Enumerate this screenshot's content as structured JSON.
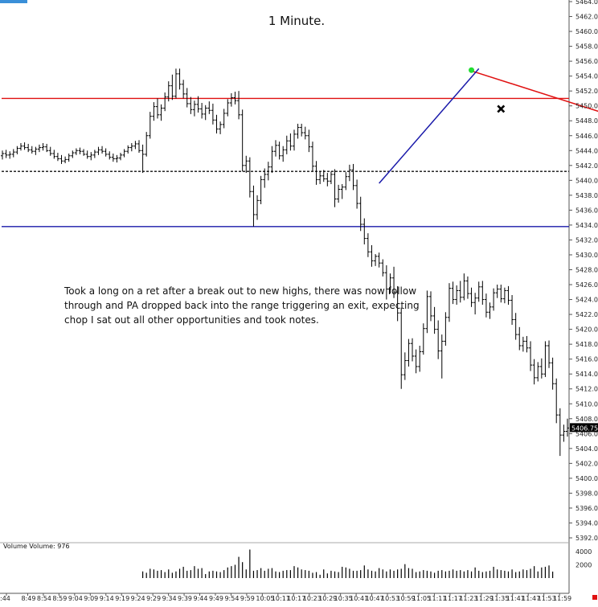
{
  "chart_data": {
    "type": "ohlc",
    "title": "1 Minute.",
    "annotation": [
      "Took a long on a ret after a break out to new highs, there was now follow",
      "through and PA dropped back into the range triggering an exit, expecting",
      "chop I sat out all other opportunities and took notes."
    ],
    "y_axis": {
      "ylim": [
        5389,
        5465
      ],
      "ticks": [
        "5464.00",
        "5462.00",
        "5460.00",
        "5458.00",
        "5456.00",
        "5454.00",
        "5452.00",
        "5450.00",
        "5448.00",
        "5446.00",
        "5444.00",
        "5442.00",
        "5440.00",
        "5438.00",
        "5436.00",
        "5434.00",
        "5432.00",
        "5430.00",
        "5428.00",
        "5426.00",
        "5424.00",
        "5422.00",
        "5420.00",
        "5418.00",
        "5416.00",
        "5414.00",
        "5412.00",
        "5410.00",
        "5408.00",
        "5406.00",
        "5404.00",
        "5402.00",
        "5400.00",
        "5398.00",
        "5396.00",
        "5394.00",
        "5392.00"
      ],
      "last_price_label": "5406.75",
      "last_price": 5406.75
    },
    "x_axis": {
      "ticks": [
        ":44",
        "8:49",
        "8:54",
        "8:59",
        "9:04",
        "9:09",
        "9:14",
        "9:19",
        "9:24",
        "9:29",
        "9:34",
        "9:39",
        "9:44",
        "9:49",
        "9:54",
        "9:59",
        "10:05",
        "10:11",
        "10:17",
        "10:23",
        "10:29",
        "10:35",
        "10:41",
        "10:47",
        "10:53",
        "10:59",
        "11:05",
        "11:11",
        "11:17",
        "11:23",
        "11:29",
        "11:35",
        "11:41",
        "11:47",
        "11:53",
        "11:59"
      ]
    },
    "levels": [
      {
        "name": "range-high",
        "price": 5451.0,
        "color": "#e01010",
        "style": "solid"
      },
      {
        "name": "range-mid",
        "price": 5441.2,
        "color": "#111111",
        "style": "dashed"
      },
      {
        "name": "range-low",
        "price": 5433.8,
        "color": "#1a1aaa",
        "style": "solid"
      }
    ],
    "trendlines": [
      {
        "name": "red-trendline",
        "from": [
          127,
          5454.7
        ],
        "to": [
          189,
          5444.9
        ],
        "color": "#e01010"
      },
      {
        "name": "blue-trendline",
        "from": [
          102,
          5439.6
        ],
        "to": [
          129,
          5455.0
        ],
        "color": "#1a1aaa"
      }
    ],
    "markers": [
      {
        "name": "green-dot-marker",
        "bar": 127,
        "price": 5454.8,
        "color": "#22dd33",
        "shape": "dot"
      },
      {
        "name": "exit-x-marker",
        "bar": 135,
        "price": 5449.6,
        "color": "#000000",
        "shape": "x"
      }
    ],
    "volume": {
      "label": "Volume  Volume: 976",
      "ticks": [
        "4000",
        "2000"
      ],
      "ylim": [
        0,
        4400
      ],
      "last_marker_color": "#e01010"
    },
    "bars": [
      [
        5443.3,
        5444.0,
        5442.8,
        5443.6
      ],
      [
        5443.6,
        5444.1,
        5443.0,
        5443.4
      ],
      [
        5443.4,
        5443.9,
        5442.9,
        5443.5
      ],
      [
        5443.5,
        5444.2,
        5443.1,
        5443.8
      ],
      [
        5443.8,
        5444.6,
        5443.5,
        5444.3
      ],
      [
        5444.3,
        5445.0,
        5444.0,
        5444.6
      ],
      [
        5444.6,
        5445.1,
        5444.1,
        5444.4
      ],
      [
        5444.4,
        5444.9,
        5443.8,
        5444.1
      ],
      [
        5444.1,
        5444.6,
        5443.6,
        5443.9
      ],
      [
        5443.9,
        5444.5,
        5443.4,
        5444.2
      ],
      [
        5444.2,
        5444.8,
        5443.8,
        5444.4
      ],
      [
        5444.4,
        5445.0,
        5444.0,
        5444.5
      ],
      [
        5444.5,
        5444.9,
        5443.8,
        5444.0
      ],
      [
        5444.0,
        5444.5,
        5443.3,
        5443.6
      ],
      [
        5443.6,
        5444.1,
        5442.9,
        5443.2
      ],
      [
        5443.2,
        5443.7,
        5442.6,
        5442.9
      ],
      [
        5442.9,
        5443.4,
        5442.2,
        5442.6
      ],
      [
        5442.6,
        5443.2,
        5442.3,
        5442.8
      ],
      [
        5442.8,
        5443.6,
        5442.5,
        5443.3
      ],
      [
        5443.3,
        5444.0,
        5443.0,
        5443.7
      ],
      [
        5443.7,
        5444.3,
        5443.4,
        5444.0
      ],
      [
        5444.0,
        5444.4,
        5443.5,
        5443.9
      ],
      [
        5443.9,
        5444.2,
        5443.3,
        5443.5
      ],
      [
        5443.5,
        5444.0,
        5442.9,
        5443.2
      ],
      [
        5443.2,
        5443.8,
        5442.7,
        5443.4
      ],
      [
        5443.4,
        5444.1,
        5443.0,
        5443.8
      ],
      [
        5443.8,
        5444.5,
        5443.4,
        5444.1
      ],
      [
        5444.1,
        5444.6,
        5443.6,
        5443.9
      ],
      [
        5443.9,
        5444.3,
        5443.2,
        5443.5
      ],
      [
        5443.5,
        5443.9,
        5442.8,
        5443.1
      ],
      [
        5443.1,
        5443.6,
        5442.5,
        5442.9
      ],
      [
        5442.9,
        5443.4,
        5442.4,
        5443.0
      ],
      [
        5443.0,
        5443.7,
        5442.7,
        5443.4
      ],
      [
        5443.4,
        5444.2,
        5443.1,
        5443.9
      ],
      [
        5443.9,
        5444.7,
        5443.6,
        5444.4
      ],
      [
        5444.4,
        5445.0,
        5443.9,
        5444.6
      ],
      [
        5444.6,
        5445.3,
        5444.2,
        5444.9
      ],
      [
        5444.9,
        5445.4,
        5443.7,
        5444.0
      ],
      [
        5444.0,
        5444.8,
        5441.0,
        5443.5
      ],
      [
        5443.5,
        5446.5,
        5443.2,
        5446.0
      ],
      [
        5446.0,
        5449.2,
        5445.6,
        5448.6
      ],
      [
        5448.6,
        5450.5,
        5448.0,
        5449.9
      ],
      [
        5449.9,
        5451.0,
        5448.3,
        5448.8
      ],
      [
        5448.8,
        5450.2,
        5448.0,
        5449.7
      ],
      [
        5449.7,
        5451.8,
        5449.3,
        5451.2
      ],
      [
        5451.2,
        5453.3,
        5450.6,
        5452.7
      ],
      [
        5452.7,
        5454.2,
        5450.8,
        5451.3
      ],
      [
        5451.3,
        5455.0,
        5451.0,
        5454.3
      ],
      [
        5454.3,
        5455.0,
        5452.2,
        5452.9
      ],
      [
        5452.9,
        5453.5,
        5451.0,
        5451.6
      ],
      [
        5451.6,
        5452.4,
        5449.8,
        5450.3
      ],
      [
        5450.3,
        5451.2,
        5448.9,
        5449.5
      ],
      [
        5449.5,
        5450.7,
        5448.6,
        5450.2
      ],
      [
        5450.2,
        5451.3,
        5449.1,
        5449.6
      ],
      [
        5449.6,
        5450.4,
        5448.3,
        5448.9
      ],
      [
        5448.9,
        5450.1,
        5448.1,
        5449.7
      ],
      [
        5449.7,
        5450.6,
        5448.9,
        5449.4
      ],
      [
        5449.4,
        5450.3,
        5447.5,
        5448.1
      ],
      [
        5448.1,
        5448.8,
        5446.3,
        5446.9
      ],
      [
        5446.9,
        5447.9,
        5446.2,
        5447.5
      ],
      [
        5447.5,
        5449.6,
        5447.0,
        5449.0
      ],
      [
        5449.0,
        5450.9,
        5448.6,
        5450.4
      ],
      [
        5450.4,
        5451.7,
        5449.9,
        5451.1
      ],
      [
        5451.1,
        5451.9,
        5450.2,
        5450.7
      ],
      [
        5450.7,
        5452.0,
        5448.2,
        5448.8
      ],
      [
        5448.8,
        5449.5,
        5441.2,
        5442.0
      ],
      [
        5442.0,
        5443.3,
        5441.0,
        5442.6
      ],
      [
        5442.6,
        5443.1,
        5437.7,
        5438.5
      ],
      [
        5438.5,
        5439.3,
        5433.8,
        5435.4
      ],
      [
        5435.4,
        5438.0,
        5434.7,
        5437.3
      ],
      [
        5437.3,
        5440.6,
        5436.8,
        5440.1
      ],
      [
        5440.1,
        5441.6,
        5439.0,
        5440.8
      ],
      [
        5440.8,
        5442.5,
        5440.0,
        5441.8
      ],
      [
        5441.8,
        5444.6,
        5441.0,
        5443.9
      ],
      [
        5443.9,
        5445.4,
        5443.2,
        5444.7
      ],
      [
        5444.7,
        5445.2,
        5442.8,
        5443.3
      ],
      [
        5443.3,
        5444.6,
        5442.5,
        5444.1
      ],
      [
        5444.1,
        5446.0,
        5443.5,
        5445.3
      ],
      [
        5445.3,
        5446.3,
        5444.0,
        5444.6
      ],
      [
        5444.6,
        5446.8,
        5444.0,
        5446.2
      ],
      [
        5446.2,
        5447.6,
        5445.6,
        5447.1
      ],
      [
        5447.1,
        5447.6,
        5445.9,
        5446.4
      ],
      [
        5446.4,
        5447.2,
        5445.5,
        5446.0
      ],
      [
        5446.0,
        5446.8,
        5443.8,
        5444.5
      ],
      [
        5444.5,
        5445.2,
        5441.2,
        5441.9
      ],
      [
        5441.9,
        5442.6,
        5439.4,
        5440.1
      ],
      [
        5440.1,
        5441.2,
        5439.5,
        5440.6
      ],
      [
        5440.6,
        5441.4,
        5439.8,
        5440.2
      ],
      [
        5440.2,
        5441.0,
        5439.2,
        5439.9
      ],
      [
        5439.9,
        5441.2,
        5439.5,
        5440.8
      ],
      [
        5440.8,
        5441.5,
        5436.4,
        5437.5
      ],
      [
        5437.5,
        5439.4,
        5437.0,
        5438.8
      ],
      [
        5438.8,
        5439.5,
        5437.5,
        5439.1
      ],
      [
        5439.1,
        5441.1,
        5438.7,
        5440.5
      ],
      [
        5440.5,
        5442.1,
        5439.9,
        5441.4
      ],
      [
        5441.4,
        5442.2,
        5438.7,
        5439.3
      ],
      [
        5439.3,
        5440.1,
        5436.2,
        5436.9
      ],
      [
        5436.9,
        5437.8,
        5433.2,
        5434.1
      ],
      [
        5434.1,
        5434.9,
        5431.4,
        5432.2
      ],
      [
        5432.2,
        5432.9,
        5429.7,
        5430.4
      ],
      [
        5430.4,
        5431.3,
        5428.4,
        5429.2
      ],
      [
        5429.2,
        5430.1,
        5428.5,
        5429.8
      ],
      [
        5429.8,
        5430.3,
        5428.3,
        5428.9
      ],
      [
        5428.9,
        5429.4,
        5427.1,
        5427.6
      ],
      [
        5427.6,
        5428.6,
        5424.0,
        5425.4
      ],
      [
        5425.4,
        5427.5,
        5424.8,
        5426.9
      ],
      [
        5426.9,
        5428.4,
        5424.2,
        5425.0
      ],
      [
        5425.0,
        5425.8,
        5421.1,
        5422.2
      ],
      [
        5422.2,
        5422.9,
        5412.0,
        5413.9
      ],
      [
        5413.9,
        5416.9,
        5413.2,
        5415.8
      ],
      [
        5415.8,
        5418.7,
        5415.0,
        5418.1
      ],
      [
        5418.1,
        5418.8,
        5415.7,
        5416.4
      ],
      [
        5416.4,
        5417.3,
        5414.1,
        5415.0
      ],
      [
        5415.0,
        5417.8,
        5414.3,
        5417.0
      ],
      [
        5417.0,
        5420.8,
        5416.6,
        5420.1
      ],
      [
        5420.1,
        5425.2,
        5419.5,
        5424.4
      ],
      [
        5424.4,
        5425.1,
        5421.1,
        5421.8
      ],
      [
        5421.8,
        5423.0,
        5419.4,
        5420.0
      ],
      [
        5420.0,
        5421.2,
        5416.0,
        5417.1
      ],
      [
        5417.1,
        5419.3,
        5413.4,
        5418.4
      ],
      [
        5418.4,
        5422.3,
        5417.8,
        5421.6
      ],
      [
        5421.6,
        5426.2,
        5421.0,
        5425.5
      ],
      [
        5425.5,
        5426.4,
        5423.4,
        5424.0
      ],
      [
        5424.0,
        5425.9,
        5423.3,
        5425.2
      ],
      [
        5425.2,
        5426.5,
        5423.6,
        5424.3
      ],
      [
        5424.3,
        5427.5,
        5423.9,
        5426.5
      ],
      [
        5426.5,
        5427.1,
        5424.1,
        5424.8
      ],
      [
        5424.8,
        5425.6,
        5423.0,
        5423.6
      ],
      [
        5423.6,
        5424.9,
        5422.0,
        5424.2
      ],
      [
        5424.2,
        5426.4,
        5423.7,
        5425.7
      ],
      [
        5425.7,
        5426.5,
        5423.3,
        5424.0
      ],
      [
        5424.0,
        5424.8,
        5421.6,
        5422.3
      ],
      [
        5422.3,
        5423.6,
        5421.4,
        5423.0
      ],
      [
        5423.0,
        5425.5,
        5422.5,
        5424.9
      ],
      [
        5424.9,
        5426.0,
        5424.2,
        5425.4
      ],
      [
        5425.4,
        5426.0,
        5423.6,
        5424.1
      ],
      [
        5424.1,
        5425.6,
        5423.5,
        5425.2
      ],
      [
        5425.2,
        5425.8,
        5423.3,
        5423.9
      ],
      [
        5423.9,
        5424.6,
        5420.6,
        5421.3
      ],
      [
        5421.3,
        5422.2,
        5418.6,
        5419.3
      ],
      [
        5419.3,
        5420.3,
        5417.2,
        5417.8
      ],
      [
        5417.8,
        5419.0,
        5417.0,
        5418.4
      ],
      [
        5418.4,
        5419.1,
        5416.9,
        5417.5
      ],
      [
        5417.5,
        5418.4,
        5414.4,
        5415.2
      ],
      [
        5415.2,
        5416.0,
        5412.6,
        5413.5
      ],
      [
        5413.5,
        5415.6,
        5413.0,
        5415.0
      ],
      [
        5415.0,
        5416.1,
        5413.4,
        5414.0
      ],
      [
        5414.0,
        5418.4,
        5413.6,
        5417.8
      ],
      [
        5417.8,
        5418.5,
        5414.8,
        5415.5
      ],
      [
        5415.5,
        5416.2,
        5411.9,
        5412.7
      ],
      [
        5412.7,
        5413.4,
        5407.4,
        5408.5
      ],
      [
        5408.5,
        5409.4,
        5403.0,
        5405.8
      ],
      [
        5405.8,
        5407.2,
        5404.9,
        5406.3
      ],
      [
        5406.3,
        5408.0,
        5405.6,
        5406.75
      ]
    ],
    "volumes": [
      0,
      0,
      0,
      0,
      0,
      0,
      0,
      0,
      0,
      0,
      0,
      0,
      0,
      0,
      0,
      0,
      0,
      0,
      0,
      0,
      0,
      0,
      0,
      0,
      0,
      0,
      0,
      0,
      0,
      0,
      0,
      0,
      0,
      0,
      0,
      0,
      0,
      0,
      1000,
      800,
      1400,
      1300,
      1100,
      1200,
      900,
      1300,
      800,
      1000,
      1400,
      1700,
      1100,
      1200,
      1800,
      1400,
      1500,
      600,
      1000,
      1100,
      1000,
      900,
      1200,
      1600,
      1800,
      2000,
      3200,
      2400,
      1300,
      4300,
      1100,
      1200,
      1500,
      1100,
      1400,
      1500,
      1000,
      900,
      1100,
      1200,
      1200,
      1800,
      1600,
      1300,
      1200,
      1100,
      800,
      900,
      500,
      1300,
      700,
      1100,
      1000,
      900,
      1700,
      1600,
      1400,
      1100,
      1100,
      1200,
      1900,
      1300,
      1100,
      1000,
      1500,
      1300,
      1000,
      1300,
      1100,
      1300,
      1400,
      2100,
      1500,
      1400,
      900,
      1000,
      1200,
      1100,
      1000,
      800,
      1100,
      1200,
      1000,
      1100,
      1300,
      1100,
      1200,
      1000,
      1200,
      1000,
      1600,
      1100,
      900,
      1000,
      1100,
      1700,
      1300,
      1200,
      1100,
      1000,
      1300,
      900,
      1000,
      1300,
      1200,
      1400,
      1800,
      1000,
      1600,
      1700,
      1900,
      976
    ]
  }
}
